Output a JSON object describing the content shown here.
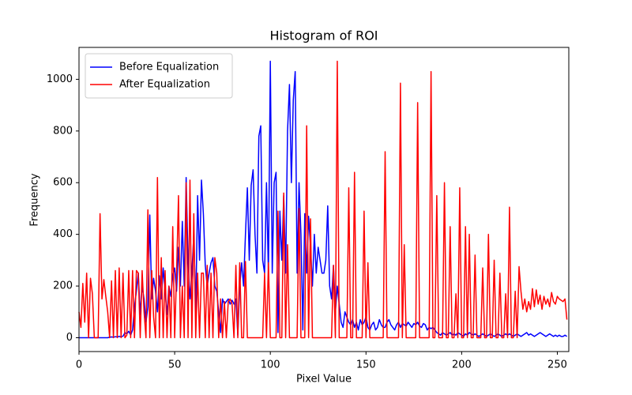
{
  "chart_data": {
    "type": "line",
    "title": "Histogram of ROI",
    "x_label": "Pixel Value",
    "y_label": "Frequency",
    "x": [
      0,
      1,
      2,
      3,
      4,
      5,
      6,
      7,
      8,
      9,
      10,
      11,
      12,
      13,
      14,
      15,
      16,
      17,
      18,
      19,
      20,
      21,
      22,
      23,
      24,
      25,
      26,
      27,
      28,
      29,
      30,
      31,
      32,
      33,
      34,
      35,
      36,
      37,
      38,
      39,
      40,
      41,
      42,
      43,
      44,
      45,
      46,
      47,
      48,
      49,
      50,
      51,
      52,
      53,
      54,
      55,
      56,
      57,
      58,
      59,
      60,
      61,
      62,
      63,
      64,
      65,
      66,
      67,
      68,
      69,
      70,
      71,
      72,
      73,
      74,
      75,
      76,
      77,
      78,
      79,
      80,
      81,
      82,
      83,
      84,
      85,
      86,
      87,
      88,
      89,
      90,
      91,
      92,
      93,
      94,
      95,
      96,
      97,
      98,
      99,
      100,
      101,
      102,
      103,
      104,
      105,
      106,
      107,
      108,
      109,
      110,
      111,
      112,
      113,
      114,
      115,
      116,
      117,
      118,
      119,
      120,
      121,
      122,
      123,
      124,
      125,
      126,
      127,
      128,
      129,
      130,
      131,
      132,
      133,
      134,
      135,
      136,
      137,
      138,
      139,
      140,
      141,
      142,
      143,
      144,
      145,
      146,
      147,
      148,
      149,
      150,
      151,
      152,
      153,
      154,
      155,
      156,
      157,
      158,
      159,
      160,
      161,
      162,
      163,
      164,
      165,
      166,
      167,
      168,
      169,
      170,
      171,
      172,
      173,
      174,
      175,
      176,
      177,
      178,
      179,
      180,
      181,
      182,
      183,
      184,
      185,
      186,
      187,
      188,
      189,
      190,
      191,
      192,
      193,
      194,
      195,
      196,
      197,
      198,
      199,
      200,
      201,
      202,
      203,
      204,
      205,
      206,
      207,
      208,
      209,
      210,
      211,
      212,
      213,
      214,
      215,
      216,
      217,
      218,
      219,
      220,
      221,
      222,
      223,
      224,
      225,
      226,
      227,
      228,
      229,
      230,
      231,
      232,
      233,
      234,
      235,
      236,
      237,
      238,
      239,
      240,
      241,
      242,
      243,
      244,
      245,
      246,
      247,
      248,
      249,
      250,
      251,
      252,
      253,
      254,
      255
    ],
    "series": [
      {
        "name": "Before Equalization",
        "color": "#0000ff",
        "values": [
          0,
          0,
          0,
          0,
          0,
          0,
          0,
          0,
          0,
          0,
          0,
          0,
          0,
          0,
          0,
          0,
          2,
          3,
          2,
          4,
          3,
          5,
          4,
          6,
          20,
          15,
          25,
          10,
          30,
          120,
          180,
          250,
          90,
          200,
          150,
          60,
          120,
          475,
          150,
          230,
          180,
          100,
          240,
          150,
          270,
          180,
          90,
          200,
          160,
          240,
          270,
          180,
          350,
          200,
          450,
          200,
          620,
          300,
          150,
          250,
          400,
          100,
          550,
          300,
          610,
          480,
          280,
          200,
          250,
          290,
          310,
          200,
          180,
          100,
          20,
          150,
          130,
          140,
          150,
          130,
          145,
          130,
          150,
          10,
          200,
          290,
          200,
          400,
          580,
          300,
          590,
          650,
          400,
          250,
          780,
          820,
          300,
          250,
          600,
          250,
          1070,
          250,
          600,
          640,
          20,
          490,
          300,
          550,
          250,
          800,
          980,
          600,
          920,
          1030,
          250,
          600,
          400,
          30,
          480,
          250,
          470,
          350,
          200,
          400,
          250,
          350,
          300,
          250,
          250,
          300,
          510,
          200,
          150,
          280,
          100,
          200,
          130,
          60,
          40,
          100,
          80,
          60,
          50,
          70,
          40,
          60,
          30,
          70,
          50,
          60,
          80,
          40,
          30,
          50,
          60,
          30,
          40,
          70,
          50,
          40,
          40,
          60,
          70,
          50,
          40,
          30,
          50,
          60,
          40,
          55,
          50,
          45,
          60,
          50,
          40,
          55,
          50,
          60,
          45,
          40,
          55,
          50,
          30,
          40,
          35,
          40,
          30,
          20,
          15,
          10,
          20,
          15,
          10,
          15,
          20,
          10,
          15,
          10,
          20,
          15,
          10,
          5,
          15,
          10,
          20,
          15,
          10,
          15,
          10,
          5,
          10,
          15,
          10,
          5,
          10,
          15,
          10,
          5,
          10,
          15,
          10,
          5,
          10,
          15,
          10,
          15,
          10,
          5,
          10,
          15,
          10,
          5,
          10,
          15,
          20,
          10,
          15,
          10,
          5,
          10,
          15,
          20,
          15,
          10,
          5,
          10,
          15,
          10,
          5,
          10,
          5,
          10,
          5,
          5,
          10,
          5
        ]
      },
      {
        "name": "After Equalization",
        "color": "#ff0000",
        "values": [
          100,
          40,
          210,
          60,
          250,
          0,
          230,
          170,
          0,
          0,
          0,
          480,
          150,
          225,
          160,
          100,
          0,
          220,
          0,
          260,
          0,
          270,
          0,
          250,
          0,
          10,
          260,
          0,
          260,
          0,
          260,
          250,
          0,
          260,
          100,
          0,
          495,
          0,
          260,
          80,
          0,
          620,
          0,
          310,
          0,
          260,
          0,
          200,
          0,
          430,
          0,
          250,
          550,
          0,
          200,
          0,
          600,
          0,
          610,
          0,
          480,
          0,
          250,
          0,
          250,
          250,
          0,
          280,
          0,
          250,
          0,
          310,
          250,
          0,
          150,
          0,
          140,
          0,
          140,
          150,
          130,
          0,
          280,
          0,
          290,
          0,
          0,
          295,
          0,
          0,
          0,
          0,
          0,
          0,
          0,
          0,
          0,
          250,
          0,
          290,
          0,
          0,
          0,
          0,
          490,
          0,
          0,
          560,
          0,
          360,
          0,
          0,
          0,
          0,
          0,
          500,
          0,
          0,
          0,
          820,
          0,
          460,
          0,
          0,
          0,
          0,
          0,
          0,
          0,
          0,
          0,
          0,
          0,
          280,
          0,
          1070,
          0,
          0,
          0,
          0,
          0,
          580,
          0,
          0,
          640,
          0,
          0,
          0,
          0,
          490,
          0,
          290,
          0,
          0,
          0,
          0,
          0,
          0,
          0,
          0,
          720,
          0,
          0,
          0,
          0,
          0,
          0,
          0,
          985,
          0,
          360,
          0,
          0,
          0,
          0,
          0,
          0,
          910,
          0,
          0,
          0,
          0,
          0,
          0,
          1030,
          0,
          0,
          550,
          0,
          0,
          0,
          600,
          0,
          0,
          430,
          0,
          0,
          170,
          0,
          580,
          0,
          0,
          430,
          0,
          400,
          0,
          0,
          320,
          0,
          0,
          0,
          270,
          0,
          0,
          400,
          0,
          0,
          300,
          0,
          0,
          250,
          0,
          0,
          170,
          0,
          505,
          0,
          0,
          180,
          0,
          275,
          180,
          110,
          150,
          100,
          140,
          110,
          190,
          120,
          185,
          130,
          165,
          110,
          160,
          130,
          150,
          120,
          175,
          140,
          130,
          160,
          150,
          145,
          140,
          150,
          70
        ]
      }
    ],
    "xlim": [
      0,
      256
    ],
    "ylim": [
      -53.5,
      1123.5
    ],
    "xticks": [
      0,
      50,
      100,
      150,
      200,
      250
    ],
    "yticks": [
      0,
      200,
      400,
      600,
      800,
      1000
    ],
    "legend": "upper left"
  }
}
